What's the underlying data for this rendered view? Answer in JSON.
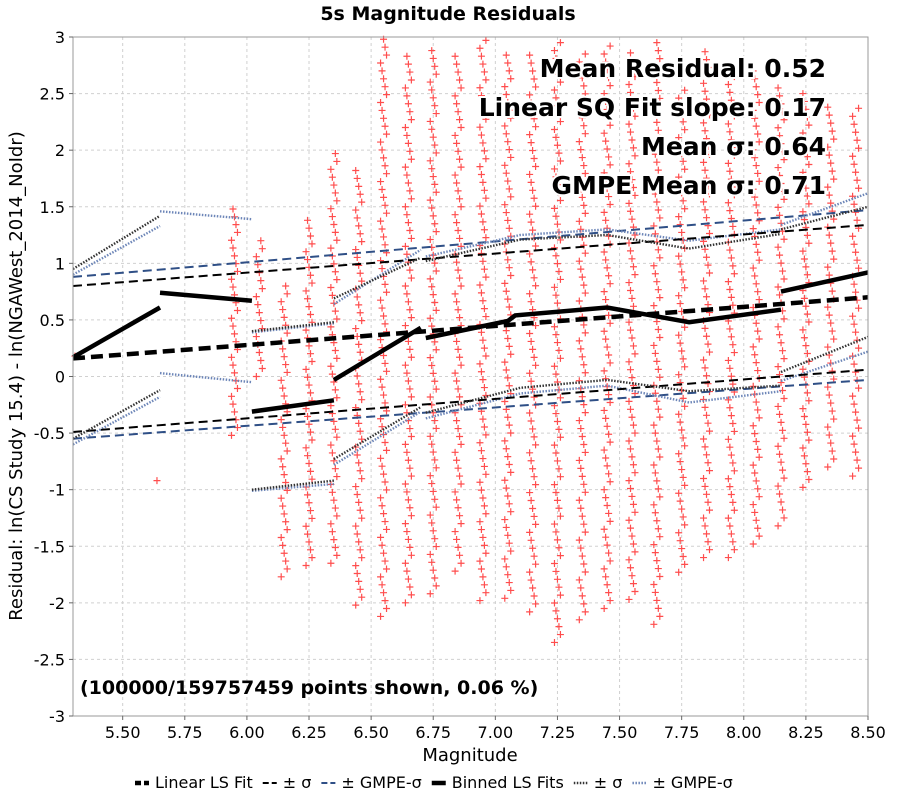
{
  "chart_data": {
    "type": "scatter",
    "title": "5s Magnitude Residuals",
    "xlabel": "Magnitude",
    "ylabel": "Residual: ln(CS Study 15.4) - ln(NGAWest_2014_NoIdr)",
    "xlim": [
      5.3,
      8.5
    ],
    "ylim": [
      -3,
      3
    ],
    "xticks": [
      "5.50",
      "5.75",
      "6.00",
      "6.25",
      "6.50",
      "6.75",
      "7.00",
      "7.25",
      "7.50",
      "7.75",
      "8.00",
      "8.25",
      "8.50"
    ],
    "yticks": [
      "-3",
      "-2.5",
      "-2",
      "-1.5",
      "-1",
      "-0.5",
      "0",
      "0.5",
      "1",
      "1.5",
      "2",
      "2.5",
      "3"
    ],
    "grid": true,
    "legend_position": "bottom",
    "stats": [
      "Mean Residual: 0.52",
      "Linear SQ Fit slope: 0.17",
      "Mean σ: 0.64",
      "GMPE Mean σ: 0.71"
    ],
    "points_note": "(100000/159757459 points shown, 0.06 %)",
    "legend": [
      {
        "label": "Linear LS Fit",
        "style": "thick-dash",
        "color": "#000000"
      },
      {
        "label": "± σ",
        "style": "dash",
        "color": "#000000"
      },
      {
        "label": "± GMPE-σ",
        "style": "dash",
        "color": "#2f4f86"
      },
      {
        "label": "Binned LS Fits",
        "style": "thick-solid",
        "color": "#000000"
      },
      {
        "label": "± σ",
        "style": "dot",
        "color": "#333333"
      },
      {
        "label": "± GMPE-σ",
        "style": "dot",
        "color": "#6d86b8"
      }
    ],
    "colors": {
      "points": "#ff4d4d",
      "fit": "#000000",
      "gmpe": "#2f4f86",
      "gmpe_light": "#6d86b8",
      "grid": "#d0d0d0"
    },
    "scatter_columns": [
      {
        "x": 5.32,
        "ymin": 0.18,
        "ymax": 0.18
      },
      {
        "x": 5.65,
        "ymin": -0.92,
        "ymax": -0.92
      },
      {
        "x": 5.95,
        "ymin": -0.52,
        "ymax": 1.48
      },
      {
        "x": 6.05,
        "ymin": 0.0,
        "ymax": 1.2
      },
      {
        "x": 6.15,
        "ymin": -1.77,
        "ymax": 0.8
      },
      {
        "x": 6.25,
        "ymin": -1.67,
        "ymax": 1.38
      },
      {
        "x": 6.35,
        "ymin": -1.65,
        "ymax": 1.97
      },
      {
        "x": 6.45,
        "ymin": -2.02,
        "ymax": 1.82
      },
      {
        "x": 6.55,
        "ymin": -2.12,
        "ymax": 2.98
      },
      {
        "x": 6.65,
        "ymin": -2.0,
        "ymax": 2.83
      },
      {
        "x": 6.75,
        "ymin": -1.92,
        "ymax": 2.88
      },
      {
        "x": 6.85,
        "ymin": -1.72,
        "ymax": 2.83
      },
      {
        "x": 6.95,
        "ymin": -1.98,
        "ymax": 2.97
      },
      {
        "x": 7.05,
        "ymin": -1.96,
        "ymax": 2.84
      },
      {
        "x": 7.15,
        "ymin": -2.08,
        "ymax": 2.84
      },
      {
        "x": 7.25,
        "ymin": -2.35,
        "ymax": 2.95
      },
      {
        "x": 7.35,
        "ymin": -2.15,
        "ymax": 2.85
      },
      {
        "x": 7.45,
        "ymin": -2.05,
        "ymax": 2.92
      },
      {
        "x": 7.55,
        "ymin": -1.97,
        "ymax": 2.86
      },
      {
        "x": 7.65,
        "ymin": -2.19,
        "ymax": 2.95
      },
      {
        "x": 7.75,
        "ymin": -1.73,
        "ymax": 2.53
      },
      {
        "x": 7.85,
        "ymin": -1.6,
        "ymax": 2.87
      },
      {
        "x": 7.95,
        "ymin": -1.6,
        "ymax": 2.65
      },
      {
        "x": 8.05,
        "ymin": -1.48,
        "ymax": 2.7
      },
      {
        "x": 8.15,
        "ymin": -1.32,
        "ymax": 2.55
      },
      {
        "x": 8.25,
        "ymin": -0.98,
        "ymax": 2.5
      },
      {
        "x": 8.35,
        "ymin": -0.8,
        "ymax": 2.38
      },
      {
        "x": 8.45,
        "ymin": -0.88,
        "ymax": 2.37
      }
    ],
    "series": [
      {
        "name": "Linear LS Fit",
        "style": "thick-dash",
        "color": "#000000",
        "segments": [
          [
            [
              5.3,
              0.16
            ],
            [
              8.5,
              0.7
            ]
          ]
        ]
      },
      {
        "name": "± σ",
        "style": "dash",
        "color": "#000000",
        "segments": [
          [
            [
              5.3,
              0.8
            ],
            [
              8.5,
              1.34
            ]
          ],
          [
            [
              5.3,
              -0.49
            ],
            [
              8.5,
              0.06
            ]
          ]
        ]
      },
      {
        "name": "± GMPE-σ",
        "style": "dash",
        "color": "#2f4f86",
        "segments": [
          [
            [
              5.3,
              0.88
            ],
            [
              8.5,
              1.47
            ]
          ],
          [
            [
              5.3,
              -0.55
            ],
            [
              8.5,
              -0.03
            ]
          ]
        ]
      },
      {
        "name": "Binned LS Fits",
        "style": "thick-solid",
        "color": "#000000",
        "segments": [
          [
            [
              5.3,
              0.17
            ],
            [
              5.65,
              0.61
            ]
          ],
          [
            [
              5.65,
              0.74
            ],
            [
              6.02,
              0.67
            ]
          ],
          [
            [
              6.02,
              -0.31
            ],
            [
              6.35,
              -0.21
            ]
          ],
          [
            [
              6.35,
              -0.03
            ],
            [
              6.7,
              0.43
            ]
          ],
          [
            [
              6.72,
              0.34
            ],
            [
              7.05,
              0.49
            ],
            [
              7.08,
              0.54
            ],
            [
              7.45,
              0.61
            ],
            [
              7.78,
              0.48
            ],
            [
              8.15,
              0.59
            ]
          ],
          [
            [
              8.15,
              0.75
            ],
            [
              8.5,
              0.92
            ]
          ]
        ]
      },
      {
        "name": "± σ",
        "style": "dot",
        "color": "#333333",
        "segments": [
          [
            [
              5.3,
              0.95
            ],
            [
              5.65,
              1.42
            ]
          ],
          [
            [
              5.3,
              -0.55
            ],
            [
              5.65,
              -0.12
            ]
          ],
          [
            [
              6.02,
              0.4
            ],
            [
              6.35,
              0.48
            ]
          ],
          [
            [
              6.02,
              -1.0
            ],
            [
              6.35,
              -0.92
            ]
          ],
          [
            [
              6.35,
              0.69
            ],
            [
              6.7,
              1.05
            ]
          ],
          [
            [
              6.35,
              -0.73
            ],
            [
              6.7,
              -0.27
            ]
          ],
          [
            [
              6.72,
              1.02
            ],
            [
              7.1,
              1.21
            ],
            [
              7.45,
              1.25
            ],
            [
              7.78,
              1.13
            ],
            [
              8.15,
              1.26
            ]
          ],
          [
            [
              6.72,
              -0.32
            ],
            [
              7.1,
              -0.1
            ],
            [
              7.45,
              -0.03
            ],
            [
              7.78,
              -0.13
            ],
            [
              8.15,
              -0.08
            ]
          ],
          [
            [
              8.15,
              1.3
            ],
            [
              8.5,
              1.5
            ]
          ],
          [
            [
              8.15,
              0.04
            ],
            [
              8.5,
              0.35
            ]
          ]
        ]
      },
      {
        "name": "± GMPE-σ",
        "style": "dot",
        "color": "#6d86b8",
        "segments": [
          [
            [
              5.3,
              0.9
            ],
            [
              5.65,
              1.33
            ]
          ],
          [
            [
              5.3,
              -0.6
            ],
            [
              5.65,
              -0.18
            ]
          ],
          [
            [
              5.65,
              1.46
            ],
            [
              6.02,
              1.39
            ]
          ],
          [
            [
              5.65,
              0.03
            ],
            [
              6.02,
              -0.05
            ]
          ],
          [
            [
              6.02,
              0.39
            ],
            [
              6.35,
              0.47
            ]
          ],
          [
            [
              6.02,
              -1.01
            ],
            [
              6.35,
              -0.95
            ]
          ],
          [
            [
              6.35,
              0.64
            ],
            [
              6.7,
              1.12
            ]
          ],
          [
            [
              6.35,
              -0.78
            ],
            [
              6.7,
              -0.31
            ]
          ],
          [
            [
              6.72,
              1.06
            ],
            [
              7.1,
              1.25
            ],
            [
              7.45,
              1.3
            ],
            [
              7.78,
              1.2
            ],
            [
              8.15,
              1.3
            ]
          ],
          [
            [
              6.72,
              -0.37
            ],
            [
              7.1,
              -0.15
            ],
            [
              7.45,
              -0.08
            ],
            [
              7.78,
              -0.23
            ],
            [
              8.15,
              -0.13
            ]
          ],
          [
            [
              8.15,
              1.34
            ],
            [
              8.5,
              1.62
            ]
          ],
          [
            [
              8.15,
              -0.04
            ],
            [
              8.5,
              0.22
            ]
          ]
        ]
      }
    ]
  }
}
